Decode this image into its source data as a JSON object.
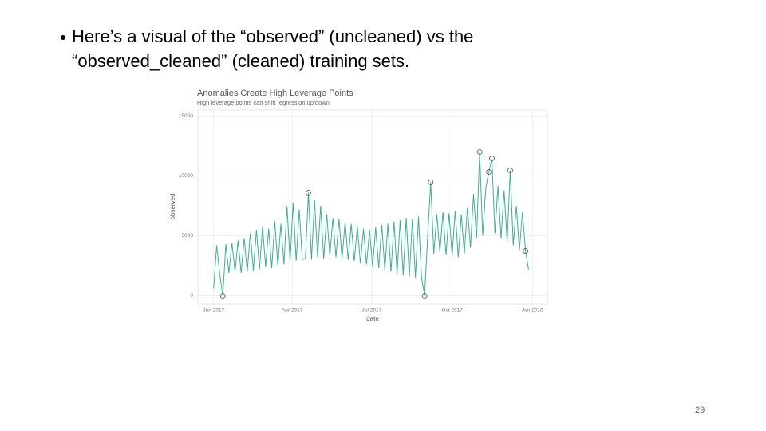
{
  "slide": {
    "bullet_lines": [
      "Here’s a visual of the “observed” (uncleaned) vs the",
      "“observed_cleaned” (cleaned) training sets."
    ],
    "page_number": "29"
  },
  "chart_data": {
    "type": "line",
    "title": "Anomalies Create High Leverage Points",
    "subtitle": "High leverage points can shift regression up/down",
    "x_label": "date",
    "y_label": "observed",
    "color": "#3fae92",
    "anomaly_color": "#555555",
    "grid": true,
    "xlim": [
      -18,
      382
    ],
    "ylim": [
      -700,
      15500
    ],
    "xticks": [
      {
        "value": 0,
        "label": "Jan 2017"
      },
      {
        "value": 90,
        "label": "Apr 2017"
      },
      {
        "value": 181,
        "label": "Jul 2017"
      },
      {
        "value": 273,
        "label": "Oct 2017"
      },
      {
        "value": 365,
        "label": "Jan 2018"
      }
    ],
    "yticks": [
      0,
      5000,
      10000,
      15000
    ],
    "x": [
      0,
      3.5,
      7,
      10.5,
      14,
      17.5,
      21,
      24.5,
      28,
      31.5,
      35,
      38.5,
      42,
      45.5,
      49,
      52.5,
      56,
      59.5,
      63,
      66.5,
      70,
      73.5,
      77,
      80.5,
      84,
      87.5,
      91,
      94.5,
      98,
      101.5,
      105,
      108.5,
      112,
      115.5,
      119,
      122.5,
      126,
      129.5,
      133,
      136.5,
      140,
      143.5,
      147,
      150.5,
      154,
      157.5,
      161,
      164.5,
      168,
      171.5,
      175,
      178.5,
      182,
      185.5,
      189,
      192.5,
      196,
      199.5,
      203,
      206.5,
      210,
      213.5,
      217,
      220.5,
      224,
      227.5,
      231,
      234.5,
      238,
      241.5,
      245,
      248.5,
      252,
      255.5,
      259,
      262.5,
      266,
      269.5,
      273,
      276.5,
      280,
      283.5,
      287,
      290.5,
      294,
      297.5,
      301,
      304.5,
      308,
      311.5,
      315,
      318.5,
      322,
      325.5,
      329,
      332.5,
      336,
      339.5,
      343,
      346.5,
      350,
      353.5,
      357,
      360.5
    ],
    "values": [
      600,
      4200,
      1800,
      0,
      4300,
      1900,
      4400,
      2000,
      4600,
      1900,
      4800,
      2000,
      5200,
      2100,
      5500,
      2200,
      5800,
      2400,
      5600,
      2300,
      6200,
      2500,
      6000,
      2600,
      7500,
      2800,
      7800,
      2900,
      7200,
      3000,
      3100,
      8600,
      3000,
      8000,
      3200,
      7500,
      3100,
      6800,
      3300,
      6500,
      3200,
      6400,
      3100,
      6200,
      3000,
      6000,
      2900,
      5800,
      2700,
      5600,
      2600,
      5500,
      2400,
      5700,
      2300,
      5900,
      2100,
      6000,
      2000,
      6200,
      1800,
      6300,
      1700,
      6500,
      1600,
      6400,
      1500,
      6600,
      1500,
      0,
      5000,
      9470,
      3500,
      6800,
      3600,
      7000,
      3400,
      6900,
      3300,
      7100,
      3200,
      6800,
      3500,
      7400,
      4000,
      8500,
      4800,
      12000,
      5000,
      9000,
      10330,
      11470,
      5200,
      9200,
      4800,
      8800,
      4500,
      10470,
      4200,
      7500,
      3800,
      7000,
      3730,
      2200
    ],
    "anomalies": {
      "x": [
        10.5,
        108.5,
        241.5,
        248.5,
        304.5,
        315,
        318.5,
        339.5,
        357
      ],
      "values": [
        0,
        8600,
        0,
        9470,
        12000,
        10330,
        11470,
        10470,
        3730
      ]
    }
  }
}
